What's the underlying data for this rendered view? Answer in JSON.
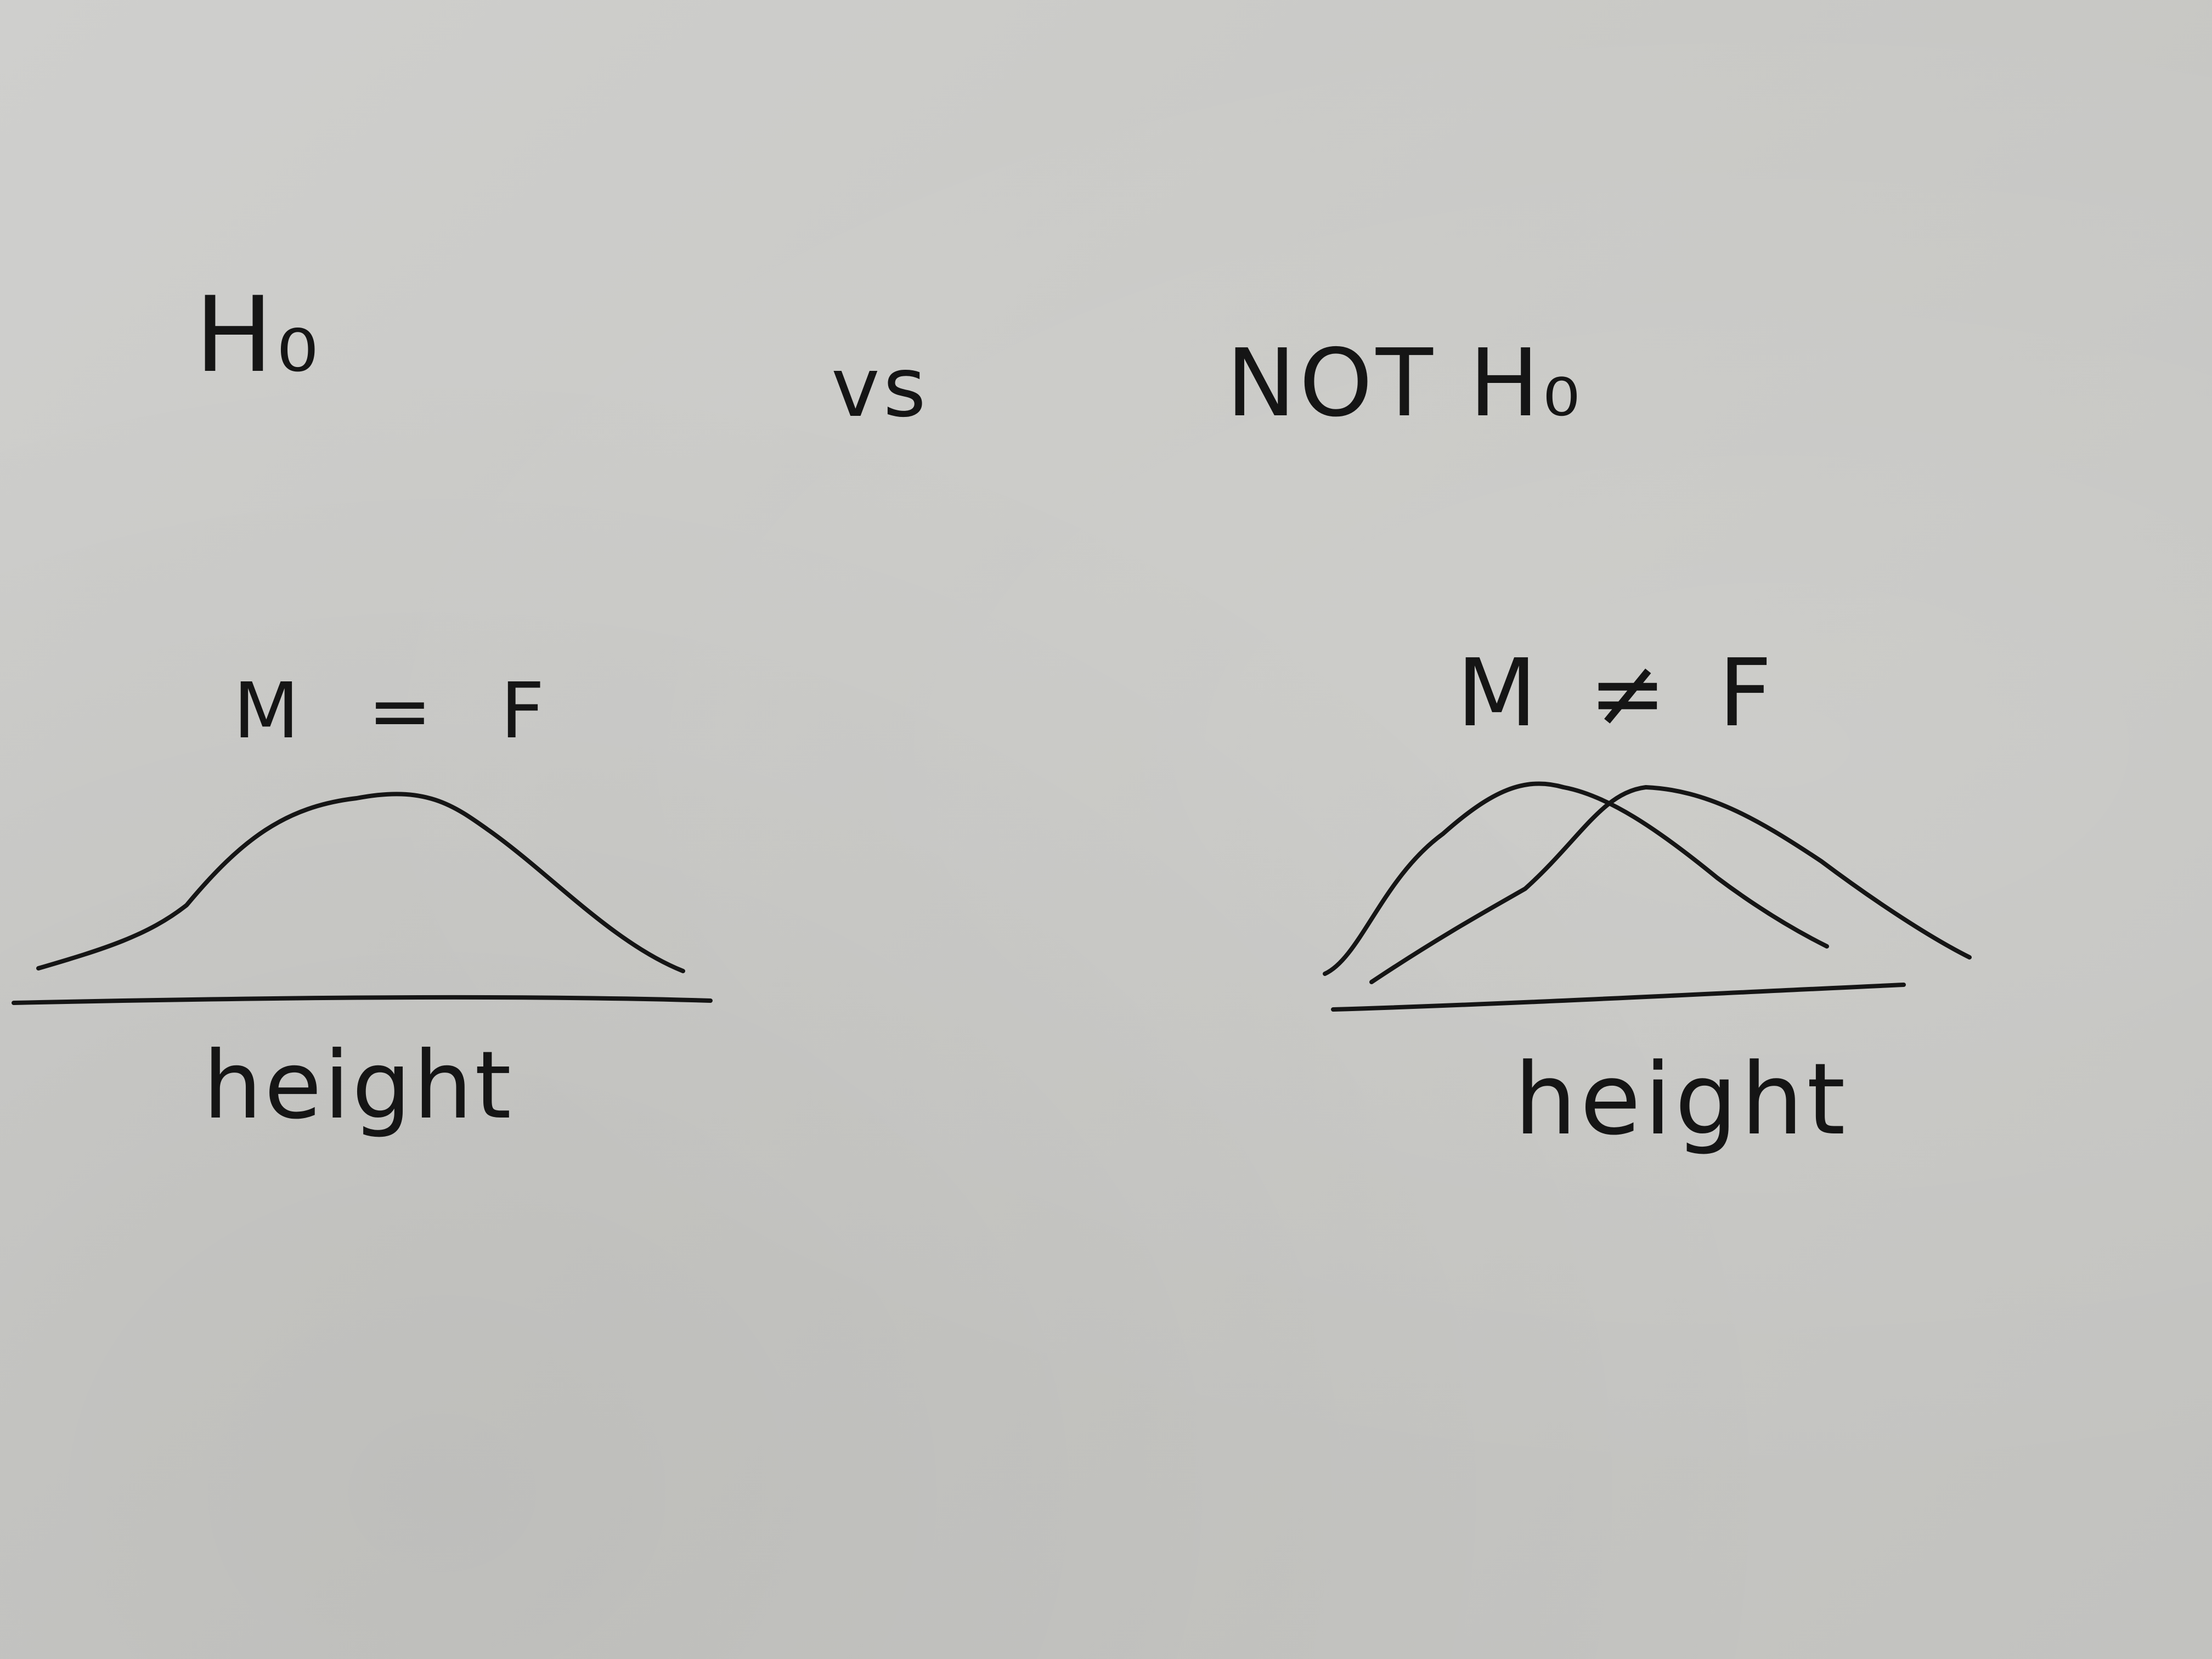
{
  "title": {
    "left": "H₀",
    "connector": "vs",
    "right": "NOT H₀"
  },
  "left_panel": {
    "label": "M = F",
    "xlabel": "height"
  },
  "right_panel": {
    "label": "M ≠ F",
    "xlabel": "height"
  },
  "colors": {
    "paper": "#c9c9c6",
    "ink": "#151515"
  }
}
